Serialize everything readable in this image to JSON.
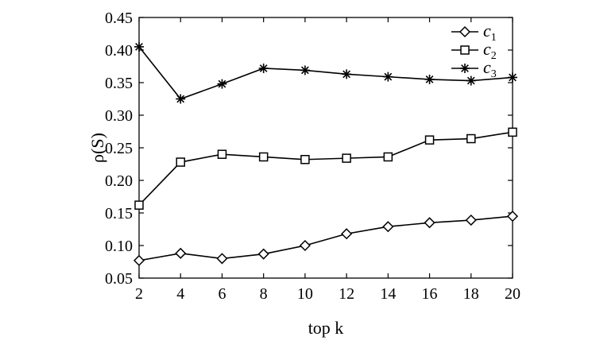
{
  "chart_data": {
    "type": "line",
    "title": "",
    "xlabel": "top k",
    "ylabel": "ρ(S)",
    "x": [
      2,
      4,
      6,
      8,
      10,
      12,
      14,
      16,
      18,
      20
    ],
    "x_ticks": [
      "2",
      "4",
      "6",
      "8",
      "10",
      "12",
      "14",
      "16",
      "18",
      "20"
    ],
    "xlim": [
      2,
      20
    ],
    "ylim": [
      0.05,
      0.45
    ],
    "y_ticks": [
      "0.05",
      "0.10",
      "0.15",
      "0.20",
      "0.25",
      "0.30",
      "0.35",
      "0.40",
      "0.45"
    ],
    "grid": false,
    "legend_position": "top-right",
    "series": [
      {
        "name": "c1",
        "name_base": "c",
        "name_sub": "1",
        "marker": "diamond",
        "values": [
          0.077,
          0.088,
          0.08,
          0.087,
          0.1,
          0.118,
          0.129,
          0.135,
          0.139,
          0.145
        ]
      },
      {
        "name": "c2",
        "name_base": "c",
        "name_sub": "2",
        "marker": "square",
        "values": [
          0.162,
          0.228,
          0.24,
          0.236,
          0.232,
          0.234,
          0.236,
          0.262,
          0.264,
          0.274
        ]
      },
      {
        "name": "c3",
        "name_base": "c",
        "name_sub": "3",
        "marker": "star",
        "values": [
          0.405,
          0.325,
          0.348,
          0.372,
          0.369,
          0.363,
          0.359,
          0.355,
          0.353,
          0.358
        ]
      }
    ]
  }
}
